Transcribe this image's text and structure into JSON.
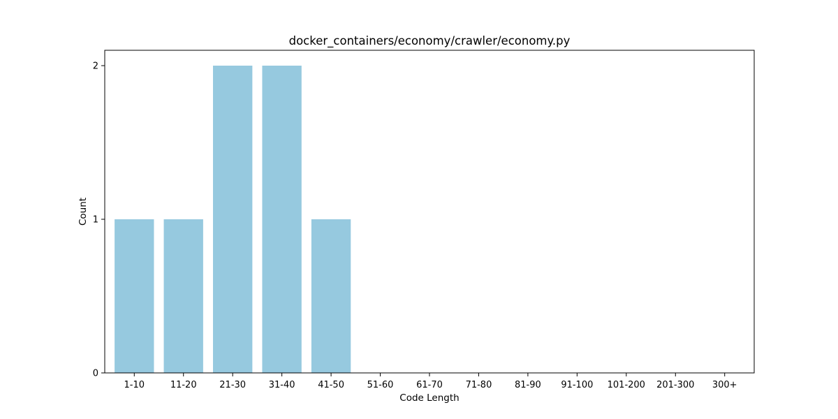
{
  "chart_data": {
    "type": "bar",
    "title": "docker_containers/economy/crawler/economy.py",
    "xlabel": "Code Length",
    "ylabel": "Count",
    "categories": [
      "1-10",
      "11-20",
      "21-30",
      "31-40",
      "41-50",
      "51-60",
      "61-70",
      "71-80",
      "81-90",
      "91-100",
      "101-200",
      "201-300",
      "300+"
    ],
    "values": [
      1,
      1,
      2,
      2,
      1,
      0,
      0,
      0,
      0,
      0,
      0,
      0,
      0
    ],
    "ylim": [
      0,
      2.1
    ],
    "yticks": [
      0,
      1,
      2
    ],
    "grid": false,
    "bar_color": "#96c9df"
  }
}
